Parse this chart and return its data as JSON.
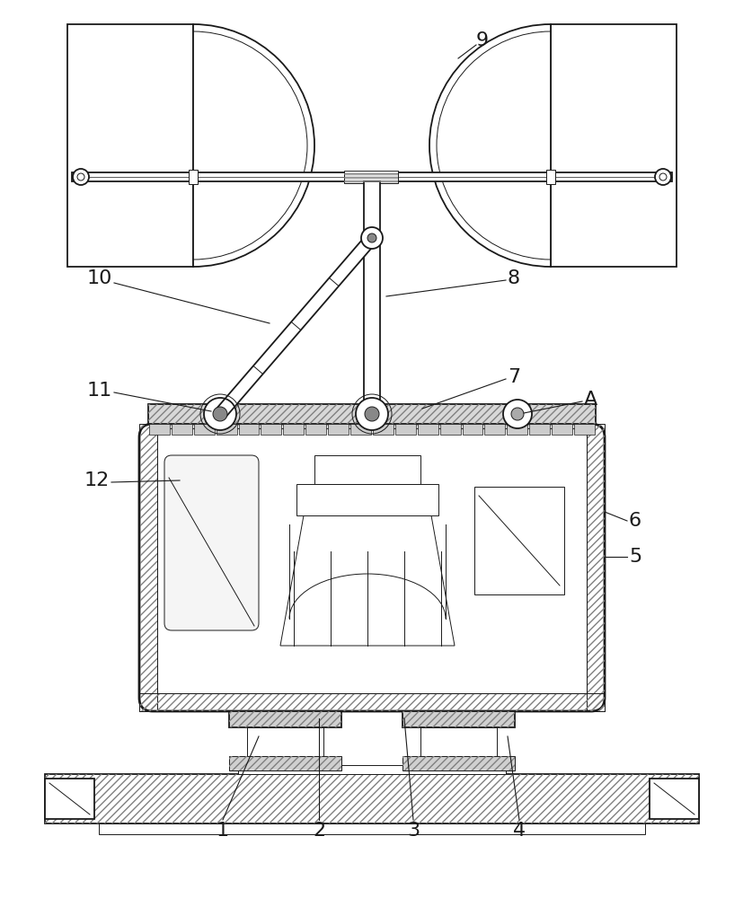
{
  "bg_color": "#ffffff",
  "line_color": "#1a1a1a",
  "figsize": [
    8.28,
    10.0
  ],
  "dpi": 100,
  "lw_main": 1.3,
  "lw_thin": 0.7,
  "lw_thick": 2.0
}
